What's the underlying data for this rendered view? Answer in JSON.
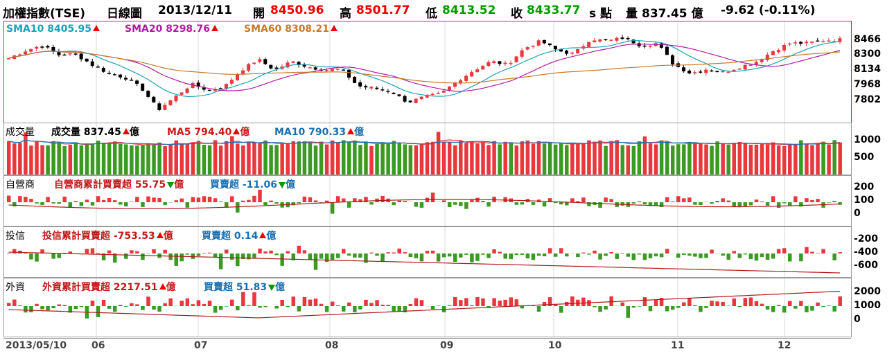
{
  "header": {
    "title": "加權指數(TSE)",
    "period": "日線圖",
    "date": "2013/12/11",
    "open_label": "開",
    "open": "8450.96",
    "high_label": "高",
    "high": "8501.77",
    "low_label": "低",
    "low": "8413.52",
    "close_label": "收",
    "close": "8433.77",
    "unit_label": "s 點",
    "volume_label": "量",
    "volume": "837.45 億",
    "change": "-9.62 (-0.11%)"
  },
  "legends": {
    "sma10": "SMA10 8405.95",
    "sma20": "SMA20 8298.76",
    "sma60": "SMA60 8308.21",
    "vol_title": "成交量",
    "vol": "成交量 837.45",
    "vol_unit": "億",
    "ma5": "MA5 794.40",
    "ma5_unit": "億",
    "ma10": "MA10 790.33",
    "ma10_unit": "億",
    "dealer_title": "自營商",
    "dealer_cum": "自營商累計買賣超 55.75",
    "dealer_cum_unit": "億",
    "dealer_net": "買賣超 -11.06",
    "dealer_net_unit": "億",
    "trust_title": "投信",
    "trust_cum": "投信累計買賣超 -753.53",
    "trust_cum_unit": "億",
    "trust_net": "買賣超 0.14",
    "trust_net_unit": "億",
    "foreign_title": "外資",
    "foreign_cum": "外資累計買賣超 2217.51",
    "foreign_cum_unit": "億",
    "foreign_net": "買賣超 51.83",
    "foreign_net_unit": "億"
  },
  "colors": {
    "up": "#e8383d",
    "down": "#3a9a22",
    "sma10": "#1aa0b8",
    "sma20": "#b01aa0",
    "sma60": "#c8782a",
    "cum": "#b01818",
    "ma10": "#1a6fb0",
    "dealerline": "#b01818"
  },
  "chart_data": [
    {
      "type": "candlestick",
      "title": "加權指數(TSE) 日線圖",
      "yticks": [
        "8466",
        "8300",
        "8134",
        "7968",
        "7802"
      ],
      "ylim": [
        7700,
        8550
      ],
      "series_names": [
        "SMA10",
        "SMA20",
        "SMA60"
      ],
      "anchors_close": [
        8260,
        8330,
        8380,
        8290,
        8300,
        8200,
        8120,
        8080,
        7980,
        7780,
        7900,
        8020,
        7960,
        8000,
        8150,
        8250,
        8150,
        8230,
        8180,
        8150,
        8160,
        8000,
        7980,
        7950,
        7850,
        7900,
        7930,
        8050,
        8150,
        8230,
        8200,
        8350,
        8420,
        8330,
        8300,
        8440,
        8420,
        8450,
        8380,
        8400,
        8200,
        8120,
        8160,
        8130,
        8180,
        8230,
        8330,
        8400,
        8400,
        8425,
        8434
      ]
    },
    {
      "type": "bar",
      "title": "成交量",
      "yticks": [
        "1000",
        "500"
      ],
      "ylim": [
        0,
        1300
      ],
      "series_names": [
        "成交量",
        "MA5",
        "MA10"
      ],
      "last_value": 837.45
    },
    {
      "type": "bar",
      "title": "自營商",
      "yticks": [
        "200",
        "100",
        "0"
      ],
      "series_names": [
        "自營商累計買賣超",
        "買賣超"
      ]
    },
    {
      "type": "bar",
      "title": "投信",
      "yticks": [
        "-200",
        "-400",
        "-600"
      ],
      "series_names": [
        "投信累計買賣超",
        "買賣超"
      ]
    },
    {
      "type": "bar",
      "title": "外資",
      "yticks": [
        "2000",
        "1000",
        "0"
      ],
      "series_names": [
        "外資累計買賣超",
        "買賣超"
      ]
    }
  ],
  "xaxis": {
    "labels": [
      "2013/05/10",
      "06",
      "07",
      "08",
      "09",
      "10",
      "11",
      "12"
    ]
  }
}
